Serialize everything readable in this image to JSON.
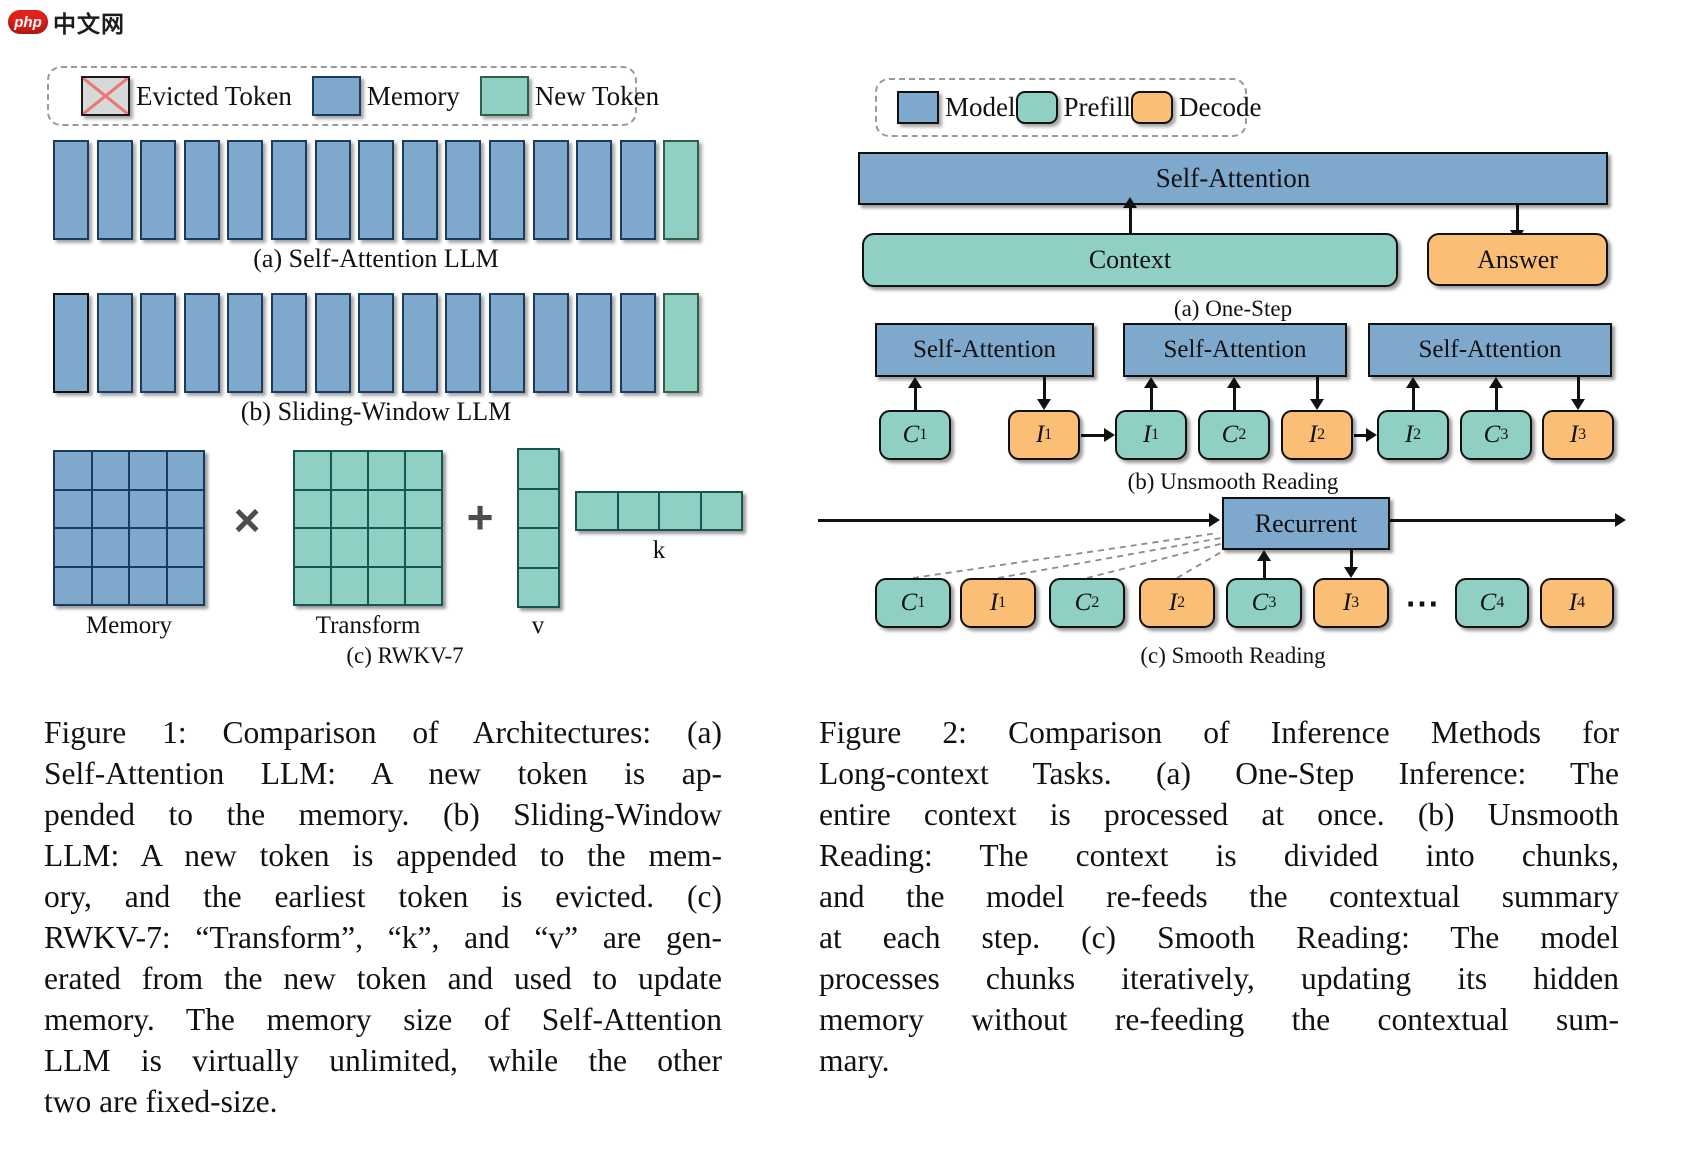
{
  "logo": {
    "badge": "php",
    "text": "中文网"
  },
  "colors": {
    "model_blue": "#7FA8CD",
    "prefill_teal": "#8FCFC4",
    "decode_orange": "#FBBE77",
    "evicted_gray": "#D8D8D8",
    "evicted_x_red": "#E97C72",
    "blue_border": "#1B3B5F",
    "teal_border": "#155650",
    "logo_red": "#E3211B"
  },
  "figure1": {
    "legend": [
      {
        "type": "evicted",
        "label": "Evicted Token"
      },
      {
        "type": "memory",
        "label": "Memory"
      },
      {
        "type": "new",
        "label": "New Token"
      }
    ],
    "row_a": {
      "memory_count": 14,
      "new_count": 1,
      "caption": "(a) Self-Attention LLM"
    },
    "row_b": {
      "evicted_count": 1,
      "memory_count": 13,
      "new_count": 1,
      "caption": "(b) Sliding-Window LLM"
    },
    "row_c": {
      "caption": "(c) RWKV-7",
      "operator_multiply": "×",
      "operator_plus": "+",
      "labels": {
        "memory": "Memory",
        "transform": "Transform",
        "v": "v",
        "k": "k"
      },
      "memory_grid": {
        "rows": 4,
        "cols": 4
      },
      "transform_grid": {
        "rows": 4,
        "cols": 4
      },
      "v_cells": 4,
      "k_cells": 4
    },
    "caption_lines": [
      "Figure 1: Comparison of Architectures: (a)",
      "Self-Attention LLM: A new token is ap-",
      "pended to the memory. (b) Sliding-Window",
      "LLM: A new token is appended to the mem-",
      "ory, and the earliest token is evicted.  (c)",
      "RWKV-7: “Transform”, “k”, and “v” are gen-",
      "erated from the new token and used to update",
      "memory. The memory size of Self-Attention",
      "LLM is virtually unlimited, while the other",
      "two are fixed-size."
    ]
  },
  "figure2": {
    "legend": [
      {
        "type": "model",
        "label": "Model"
      },
      {
        "type": "prefill",
        "label": "Prefill"
      },
      {
        "type": "decode",
        "label": "Decode"
      }
    ],
    "one_step": {
      "self_attention": "Self-Attention",
      "context": "Context",
      "answer": "Answer",
      "caption": "(a) One-Step"
    },
    "unsmooth": {
      "caption": "(b) Unsmooth Reading",
      "sa_labels": [
        "Self-Attention",
        "Self-Attention",
        "Self-Attention"
      ],
      "tokens": [
        {
          "base": "C",
          "sub": "1",
          "type": "prefill"
        },
        {
          "base": "I",
          "sub": "1",
          "type": "decode"
        },
        {
          "base": "I",
          "sub": "1",
          "type": "prefill"
        },
        {
          "base": "C",
          "sub": "2",
          "type": "prefill"
        },
        {
          "base": "I",
          "sub": "2",
          "type": "decode"
        },
        {
          "base": "I",
          "sub": "2",
          "type": "prefill"
        },
        {
          "base": "C",
          "sub": "3",
          "type": "prefill"
        },
        {
          "base": "I",
          "sub": "3",
          "type": "decode"
        }
      ]
    },
    "smooth": {
      "caption": "(c) Smooth Reading",
      "recurrent": "Recurrent",
      "ellipsis": "⋯",
      "tokens": [
        {
          "base": "C",
          "sub": "1",
          "type": "prefill"
        },
        {
          "base": "I",
          "sub": "1",
          "type": "decode"
        },
        {
          "base": "C",
          "sub": "2",
          "type": "prefill"
        },
        {
          "base": "I",
          "sub": "2",
          "type": "decode"
        },
        {
          "base": "C",
          "sub": "3",
          "type": "prefill"
        },
        {
          "base": "I",
          "sub": "3",
          "type": "decode"
        },
        {
          "base": "C",
          "sub": "4",
          "type": "prefill"
        },
        {
          "base": "I",
          "sub": "4",
          "type": "decode"
        }
      ]
    },
    "caption_lines": [
      "Figure 2: Comparison of Inference Methods for",
      "Long-context Tasks. (a) One-Step Inference: The",
      "entire context is processed at once. (b) Unsmooth",
      "Reading:  The context is divided into chunks,",
      "and the model re-feeds the contextual summary",
      "at each step.  (c) Smooth Reading:  The model",
      "processes chunks iteratively, updating its hidden",
      "memory without re-feeding the contextual sum-",
      "mary."
    ]
  }
}
